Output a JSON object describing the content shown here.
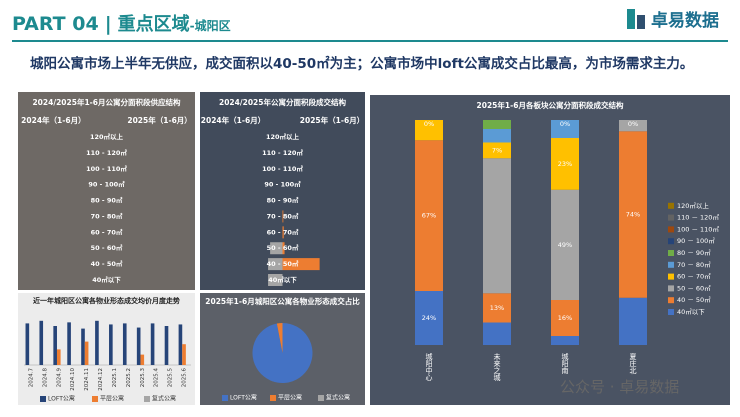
{
  "header": {
    "part": "PART 04",
    "separator": "|",
    "title": "重点区域",
    "region": "-城阳区",
    "logo": "卓易数据"
  },
  "headline": "城阳公寓市场上半年无供应，成交面积以40-50㎡为主；公寓市场中loft公寓成交占比最高，为市场需求主力。",
  "watermark": "公众号 · 卓易数据",
  "chart_data": [
    {
      "type": "butterfly",
      "title": "2024/2025年1-6月公寓分面积段供应结构",
      "categories": [
        "120㎡以上",
        "110 - 120㎡",
        "100 - 110㎡",
        "90 - 100㎡",
        "80 - 90㎡",
        "70 - 80㎡",
        "60 - 70㎡",
        "50 - 60㎡",
        "40 - 50㎡",
        "40㎡以下"
      ],
      "series": [
        {
          "name": "2024年（1-6月）",
          "values": [
            null,
            null,
            null,
            null,
            null,
            null,
            null,
            null,
            null,
            null
          ]
        },
        {
          "name": "2025年（1-6月）",
          "values": [
            null,
            null,
            null,
            null,
            null,
            null,
            null,
            null,
            null,
            null
          ]
        }
      ]
    },
    {
      "type": "butterfly",
      "title": "2024/2025年公寓分面积段成交结构",
      "categories": [
        "120㎡以上",
        "110 - 120㎡",
        "100 - 110㎡",
        "90 - 100㎡",
        "80 - 90㎡",
        "70 - 80㎡",
        "60 - 70㎡",
        "50 - 60㎡",
        "40 - 50㎡",
        "40㎡以下"
      ],
      "series": [
        {
          "name": "2024年（1-6月）",
          "color": "#a5a5a5",
          "values": [
            null,
            null,
            null,
            null,
            null,
            null,
            null,
            30,
            35,
            35
          ]
        },
        {
          "name": "2025年（1-6月）",
          "color": "#ed7d31",
          "values": [
            null,
            null,
            null,
            null,
            null,
            2,
            3,
            5,
            90,
            null
          ]
        }
      ],
      "xlim": [
        0,
        100
      ]
    },
    {
      "type": "bar",
      "title": "近一年城阳区公寓各物业形态成交均价月度走势",
      "categories": [
        "2024.7",
        "2024.8",
        "2024.9",
        "2024.10",
        "2024.11",
        "2024.12",
        "2025.1",
        "2025.2",
        "2025.3",
        "2025.4",
        "2025.5",
        "2025.6"
      ],
      "series": [
        {
          "name": "LOFT公寓",
          "color": "#264478",
          "values": [
            80,
            85,
            75,
            82,
            70,
            85,
            78,
            80,
            72,
            80,
            75,
            78
          ]
        },
        {
          "name": "平层公寓",
          "color": "#ed7d31",
          "values": [
            null,
            null,
            30,
            null,
            45,
            null,
            null,
            null,
            20,
            null,
            null,
            40
          ]
        },
        {
          "name": "复式公寓",
          "color": "#a5a5a5",
          "values": [
            null,
            null,
            null,
            null,
            null,
            null,
            null,
            null,
            null,
            null,
            null,
            null
          ]
        }
      ],
      "ylim": [
        0,
        100
      ]
    },
    {
      "type": "pie",
      "title": "2025年1-6月城阳区公寓各物业形态成交占比",
      "categories": [
        "LOFT公寓",
        "平层公寓",
        "复式公寓"
      ],
      "values": [
        97,
        3,
        0
      ],
      "colors": [
        "#4472c4",
        "#ed7d31",
        "#a5a5a5"
      ]
    },
    {
      "type": "stacked_bar",
      "title": "2025年1-6月各板块公寓分面积段成交结构",
      "categories": [
        "城阳中心",
        "未来之城",
        "城阳南",
        "夏庄北"
      ],
      "series": [
        {
          "name": "40㎡以下",
          "color": "#4472c4",
          "values": [
            24,
            10,
            4,
            21
          ],
          "value_labels": [
            "24%",
            null,
            null,
            null
          ]
        },
        {
          "name": "40 － 50㎡",
          "color": "#ed7d31",
          "values": [
            67,
            13,
            16,
            74
          ],
          "value_labels": [
            "67%",
            "13%",
            "16%",
            "74%"
          ]
        },
        {
          "name": "50 － 60㎡",
          "color": "#a5a5a5",
          "values": [
            0,
            60,
            49,
            5
          ],
          "value_labels": [
            null,
            null,
            "49%",
            null
          ]
        },
        {
          "name": "60 － 70㎡",
          "color": "#ffc000",
          "values": [
            9,
            7,
            23,
            0
          ],
          "value_labels": [
            null,
            "7%",
            "23%",
            null
          ]
        },
        {
          "name": "70 － 80㎡",
          "color": "#5b9bd5",
          "values": [
            0,
            6,
            8,
            0
          ]
        },
        {
          "name": "80 － 90㎡",
          "color": "#70ad47",
          "values": [
            0,
            4,
            0,
            0
          ]
        },
        {
          "name": "90 － 100㎡",
          "color": "#264478",
          "values": [
            0,
            0,
            0,
            0
          ]
        },
        {
          "name": "100 － 110㎡",
          "color": "#9e480e",
          "values": [
            0,
            0,
            0,
            0
          ]
        },
        {
          "name": "110 － 120㎡",
          "color": "#636363",
          "values": [
            0,
            0,
            0,
            0
          ]
        },
        {
          "name": "120㎡以上",
          "color": "#997300",
          "values": [
            0,
            0,
            0,
            0
          ],
          "value_labels": [
            "0%",
            null,
            "0%",
            "0%"
          ]
        }
      ],
      "ylim": [
        0,
        100
      ]
    }
  ]
}
